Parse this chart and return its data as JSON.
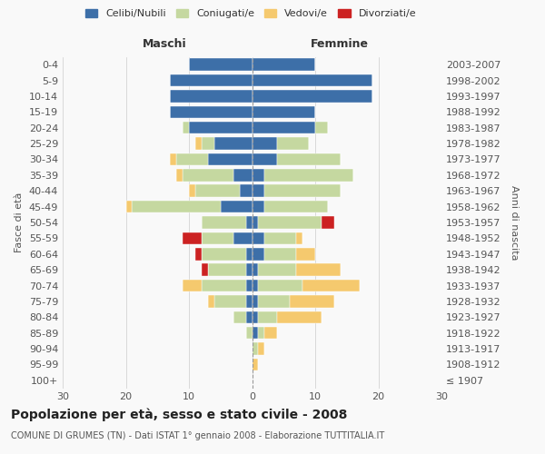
{
  "age_groups": [
    "0-4",
    "5-9",
    "10-14",
    "15-19",
    "20-24",
    "25-29",
    "30-34",
    "35-39",
    "40-44",
    "45-49",
    "50-54",
    "55-59",
    "60-64",
    "65-69",
    "70-74",
    "75-79",
    "80-84",
    "85-89",
    "90-94",
    "95-99",
    "100+"
  ],
  "birth_years": [
    "2003-2007",
    "1998-2002",
    "1993-1997",
    "1988-1992",
    "1983-1987",
    "1978-1982",
    "1973-1977",
    "1968-1972",
    "1963-1967",
    "1958-1962",
    "1953-1957",
    "1948-1952",
    "1943-1947",
    "1938-1942",
    "1933-1937",
    "1928-1932",
    "1923-1927",
    "1918-1922",
    "1913-1917",
    "1908-1912",
    "≤ 1907"
  ],
  "maschi": {
    "celibi": [
      10,
      13,
      13,
      13,
      10,
      6,
      7,
      3,
      2,
      5,
      1,
      3,
      1,
      1,
      1,
      1,
      1,
      0,
      0,
      0,
      0
    ],
    "coniugati": [
      0,
      0,
      0,
      0,
      1,
      2,
      5,
      8,
      7,
      14,
      7,
      5,
      7,
      6,
      7,
      5,
      2,
      1,
      0,
      0,
      0
    ],
    "vedovi": [
      0,
      0,
      0,
      0,
      0,
      1,
      1,
      1,
      1,
      1,
      0,
      0,
      0,
      0,
      3,
      1,
      0,
      0,
      0,
      0,
      0
    ],
    "divorziati": [
      0,
      0,
      0,
      0,
      0,
      0,
      0,
      0,
      0,
      0,
      0,
      3,
      1,
      1,
      0,
      0,
      0,
      0,
      0,
      0,
      0
    ]
  },
  "femmine": {
    "nubili": [
      10,
      19,
      19,
      10,
      10,
      4,
      4,
      2,
      2,
      2,
      1,
      2,
      2,
      1,
      1,
      1,
      1,
      1,
      0,
      0,
      0
    ],
    "coniugate": [
      0,
      0,
      0,
      0,
      2,
      5,
      10,
      14,
      12,
      10,
      10,
      5,
      5,
      6,
      7,
      5,
      3,
      1,
      1,
      0,
      0
    ],
    "vedove": [
      0,
      0,
      0,
      0,
      0,
      0,
      0,
      0,
      0,
      0,
      0,
      1,
      3,
      7,
      9,
      7,
      7,
      2,
      1,
      1,
      0
    ],
    "divorziate": [
      0,
      0,
      0,
      0,
      0,
      0,
      0,
      0,
      0,
      0,
      2,
      0,
      0,
      0,
      0,
      0,
      0,
      0,
      0,
      0,
      0
    ]
  },
  "colors": {
    "celibi": "#3d6fa8",
    "coniugati": "#c5d8a0",
    "vedovi": "#f5c96e",
    "divorziati": "#cc2222"
  },
  "xlim": 30,
  "title": "Popolazione per età, sesso e stato civile - 2008",
  "subtitle": "COMUNE DI GRUMES (TN) - Dati ISTAT 1° gennaio 2008 - Elaborazione TUTTITALIA.IT",
  "ylabel_left": "Fasce di età",
  "ylabel_right": "Anni di nascita",
  "xlabel_maschi": "Maschi",
  "xlabel_femmine": "Femmine",
  "legend_labels": [
    "Celibi/Nubili",
    "Coniugati/e",
    "Vedovi/e",
    "Divorziati/e"
  ],
  "bg_color": "#f9f9f9",
  "grid_color": "#cccccc"
}
